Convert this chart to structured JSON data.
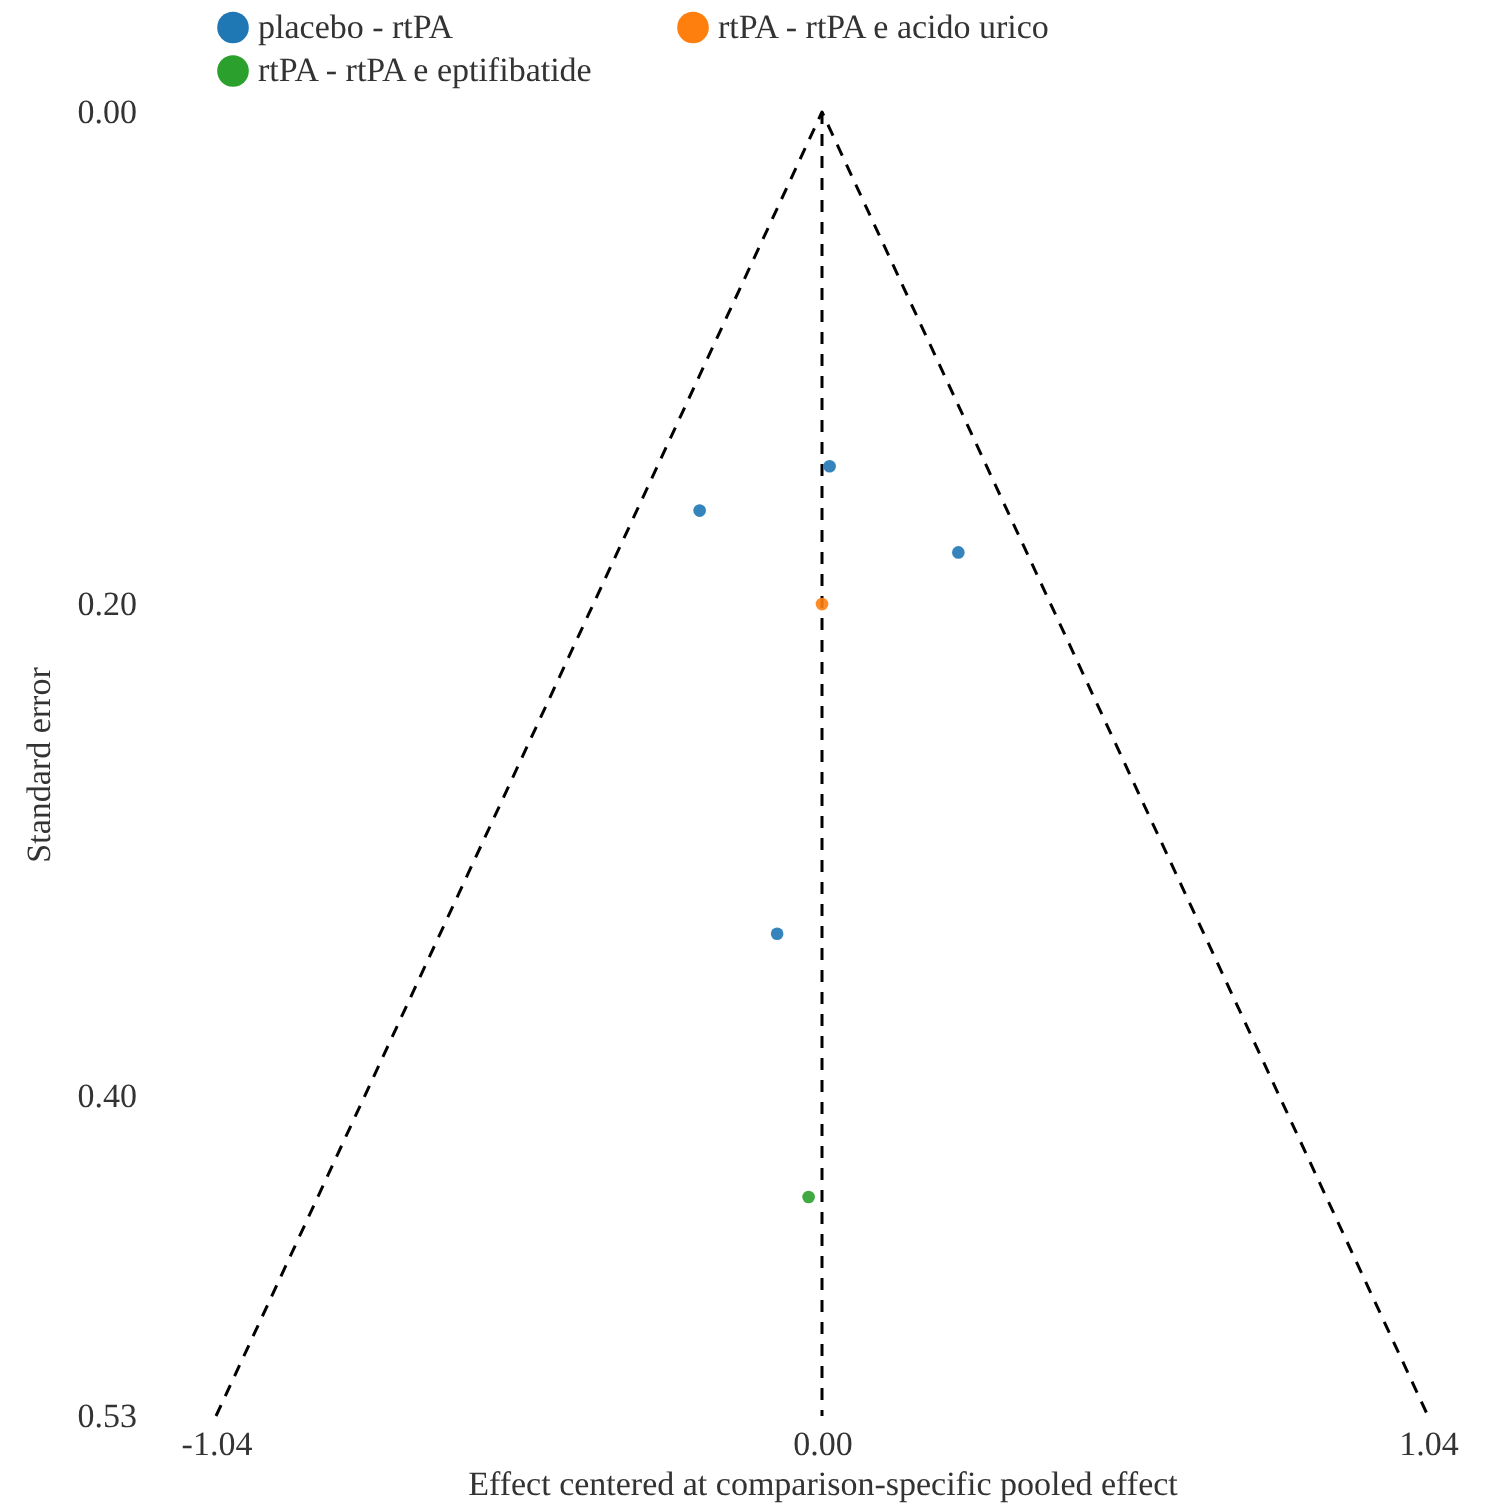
{
  "chart_data": {
    "type": "scatter",
    "xlabel": "Effect centered at comparison-specific pooled effect",
    "ylabel": "Standard error",
    "xlim": [
      -1.04,
      1.04
    ],
    "ylim": [
      0.53,
      0
    ],
    "xticks": [
      {
        "value": -1.04,
        "label": "-1.04"
      },
      {
        "value": 0,
        "label": "0.00"
      },
      {
        "value": 1.04,
        "label": "1.04"
      }
    ],
    "yticks": [
      {
        "value": 0,
        "label": "0.00"
      },
      {
        "value": 0.2,
        "label": "0.20"
      },
      {
        "value": 0.4,
        "label": "0.40"
      },
      {
        "value": 0.53,
        "label": "0.53"
      }
    ],
    "series": [
      {
        "name": "placebo - rtPA",
        "color": "#1f77b4",
        "x": [
          0.013,
          -0.21,
          0.234,
          -0.077
        ],
        "values": [
          0.144,
          0.162,
          0.179,
          0.334
        ]
      },
      {
        "name": "rtPA - rtPA e acido urico",
        "color": "#ff7f0e",
        "x": [
          0.0
        ],
        "values": [
          0.2
        ]
      },
      {
        "name": "rtPA - rtPA e eptifibatide",
        "color": "#2ca02c",
        "x": [
          -0.023
        ],
        "values": [
          0.441
        ]
      },
      {
        "type": "line",
        "color": "#000000",
        "line_style": "dashed",
        "marker": "none",
        "x": [
          -1.04,
          0,
          1.04
        ],
        "values": [
          0.53,
          0,
          0.53
        ]
      }
    ],
    "ref_lines": [
      {
        "axis": "x",
        "value": 0,
        "color": "#000000",
        "line_style": "dashed"
      }
    ],
    "marker": "circle",
    "grid": false,
    "legend": "top"
  }
}
